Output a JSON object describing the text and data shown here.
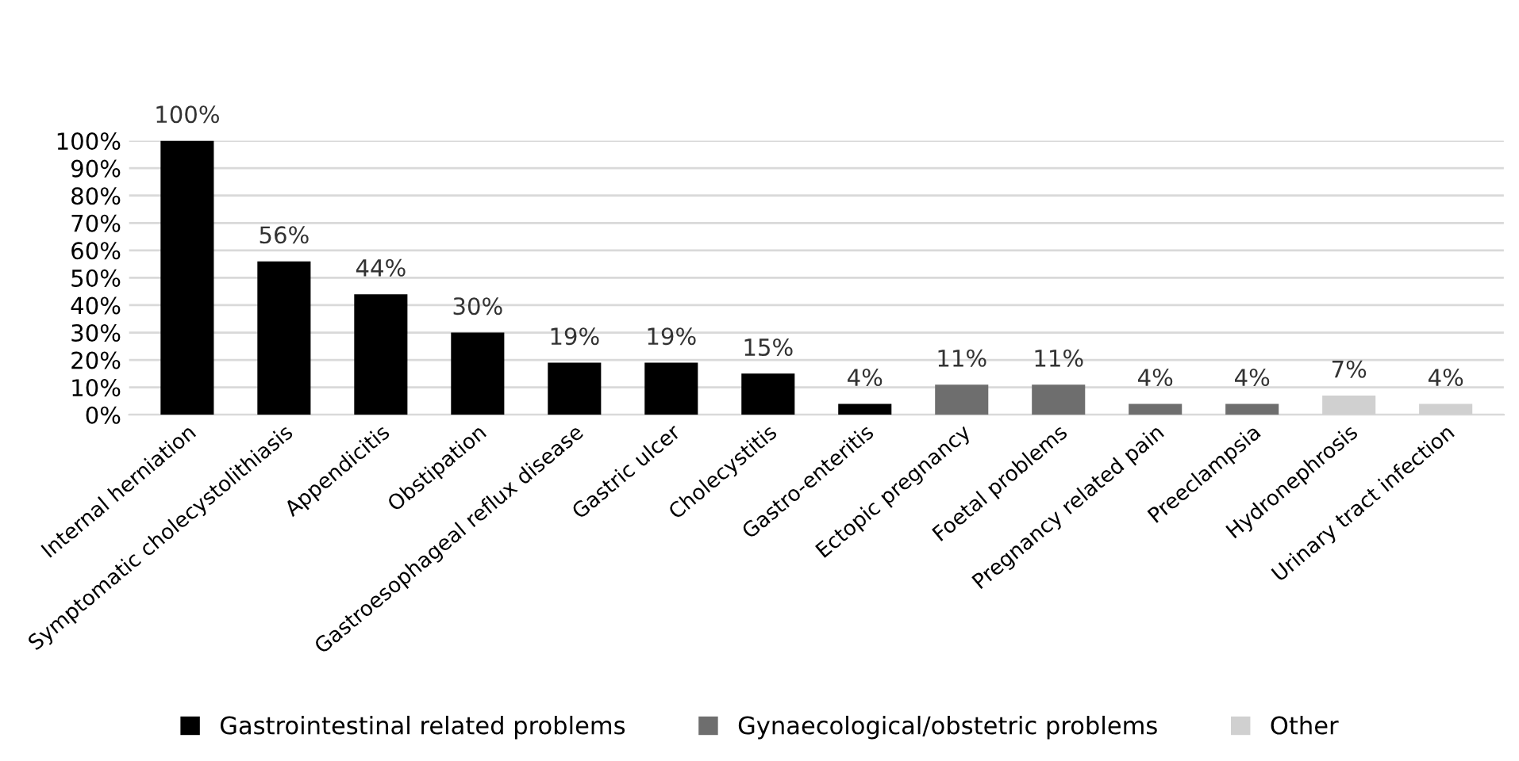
{
  "chart_data": {
    "type": "bar",
    "categories": [
      "Internal herniation",
      "Symptomatic cholecystolithiasis",
      "Appendicitis",
      "Obstipation",
      "Gastroesophageal reflux disease",
      "Gastric ulcer",
      "Cholecystitis",
      "Gastro-enteritis",
      "Ectopic pregnancy",
      "Foetal problems",
      "Pregnancy related pain",
      "Preeclampsia",
      "Hydronephrosis",
      "Urinary tract infection"
    ],
    "series": [
      {
        "name": "Gastrointestinal related problems",
        "color": "#000000",
        "values": [
          100,
          56,
          44,
          30,
          19,
          19,
          15,
          4,
          null,
          null,
          null,
          null,
          null,
          null
        ],
        "value_labels": [
          "100%",
          "56%",
          "44%",
          "30%",
          "19%",
          "19%",
          "15%",
          "4%",
          null,
          null,
          null,
          null,
          null,
          null
        ]
      },
      {
        "name": "Gynaecological/obstetric problems",
        "color": "#6e6e6e",
        "values": [
          null,
          null,
          null,
          null,
          null,
          null,
          null,
          null,
          11,
          11,
          4,
          4,
          null,
          null
        ],
        "value_labels": [
          null,
          null,
          null,
          null,
          null,
          null,
          null,
          null,
          "11%",
          "11%",
          "4%",
          "4%",
          null,
          null
        ]
      },
      {
        "name": "Other",
        "color": "#d0d0d0",
        "values": [
          null,
          null,
          null,
          null,
          null,
          null,
          null,
          null,
          null,
          null,
          null,
          null,
          7,
          4
        ],
        "value_labels": [
          null,
          null,
          null,
          null,
          null,
          null,
          null,
          null,
          null,
          null,
          null,
          null,
          "7%",
          "4%"
        ]
      }
    ],
    "ylim": [
      0,
      100
    ],
    "yticks": [
      {
        "value": 0,
        "label": "0%"
      },
      {
        "value": 10,
        "label": "10%"
      },
      {
        "value": 20,
        "label": "20%"
      },
      {
        "value": 30,
        "label": "30%"
      },
      {
        "value": 40,
        "label": "40%"
      },
      {
        "value": 50,
        "label": "50%"
      },
      {
        "value": 60,
        "label": "60%"
      },
      {
        "value": 70,
        "label": "70%"
      },
      {
        "value": 80,
        "label": "80%"
      },
      {
        "value": 90,
        "label": "90%"
      },
      {
        "value": 100,
        "label": "100%"
      }
    ],
    "grid": "y",
    "legend": "bottom"
  }
}
